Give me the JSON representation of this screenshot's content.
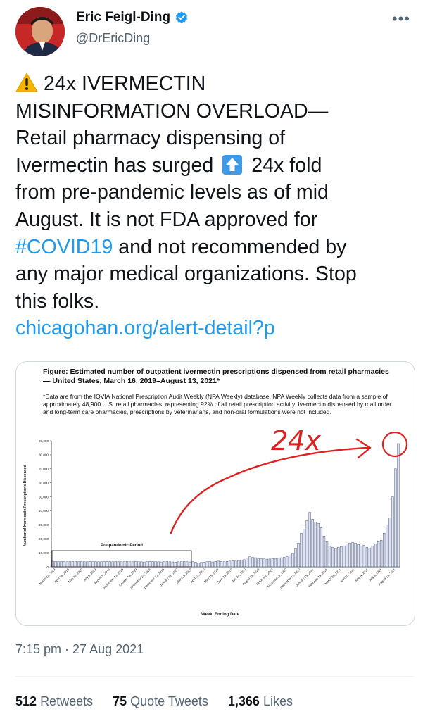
{
  "author": {
    "display_name": "Eric Feigl-Ding",
    "handle": "@DrEricDing",
    "verified": true
  },
  "more_icon": "more-options-icon",
  "tweet": {
    "line1": "24x IVERMECTIN",
    "line2": "MISINFORMATION OVERLOAD—",
    "line3": "Retail pharmacy dispensing of",
    "line4a": "Ivermectin has surged",
    "line4b": "24x fold",
    "line5": "from pre-pandemic levels as of mid",
    "line6": "August. It is not FDA approved for",
    "line7_hashtag": "#COVID19",
    "line7b": " and not recommended by",
    "line8": "any major medical organizations. Stop",
    "line9": "this folks.",
    "link": "chicagohan.org/alert-detail?p"
  },
  "figure": {
    "title": "Figure: Estimated number of outpatient ivermectin prescriptions dispensed from retail pharmacies — United States, March 16, 2019–August 13, 2021*",
    "note": "*Data are from the IQVIA National Prescription Audit Weekly (NPA Weekly) database. NPA Weekly collects data from a sample of approximately 48,900 U.S. retail pharmacies, representing 92% of all retail prescription activity. Ivermectin dispensed by mail order and long-term care pharmacies, prescriptions by veterinarians, and non-oral formulations were not included."
  },
  "chart_data": {
    "type": "bar",
    "ylabel": "Number of Ivermectin Prescriptions Dispensed",
    "xlabel": "Week, Ending Date",
    "ylim": [
      0,
      90000
    ],
    "yticks": [
      "0",
      "10,000",
      "20,000",
      "30,000",
      "40,000",
      "50,000",
      "60,000",
      "70,000",
      "80,000",
      "90,000"
    ],
    "xtick_labels": [
      "March 22, 2019",
      "April 26, 2019",
      "May 31, 2019",
      "July 5, 2019",
      "August 9, 2019",
      "September 13, 2019",
      "October 18, 2019",
      "November 22, 2019",
      "December 27, 2019",
      "January 31, 2020",
      "March 6, 2020",
      "April 10, 2020",
      "May 15, 2020",
      "June 19, 2020",
      "July 24, 2020",
      "August 28, 2020",
      "October 2, 2020",
      "November 6, 2020",
      "December 11, 2020",
      "January 15, 2021",
      "February 19, 2021",
      "March 26, 2021",
      "April 30, 2021",
      "June 4, 2021",
      "July 9, 2021",
      "August 13, 2021"
    ],
    "annotation_prepandemic": "Pre-pandemic Period",
    "annotation_handwritten": "24x",
    "grid": false,
    "values": [
      4000,
      3900,
      3700,
      3800,
      3900,
      3600,
      3700,
      3800,
      3700,
      3600,
      3800,
      3700,
      3600,
      3900,
      3700,
      3800,
      3600,
      3700,
      3800,
      3900,
      3700,
      3600,
      3800,
      3700,
      3600,
      3700,
      3800,
      3700,
      3600,
      3800,
      3700,
      3600,
      3500,
      3700,
      3900,
      3800,
      3700,
      3600,
      3500,
      3700,
      3800,
      3600,
      3500,
      3400,
      3600,
      3700,
      3800,
      3600,
      3500,
      3700,
      3300,
      2800,
      3200,
      3400,
      3600,
      3800,
      3500,
      3900,
      4100,
      3800,
      3700,
      3900,
      4100,
      4300,
      4200,
      4500,
      4800,
      5100,
      6400,
      7200,
      6800,
      6500,
      6000,
      5800,
      5600,
      5500,
      5600,
      5800,
      6000,
      6200,
      6500,
      6800,
      7200,
      8000,
      9500,
      13000,
      17000,
      24000,
      27000,
      33000,
      39000,
      34000,
      32000,
      31000,
      28000,
      22000,
      18000,
      15000,
      14000,
      13000,
      14000,
      14500,
      15000,
      16500,
      17000,
      17500,
      17000,
      16000,
      15000,
      15500,
      14000,
      13500,
      15000,
      16500,
      18000,
      19000,
      24000,
      30000,
      35000,
      50000,
      70000,
      88000
    ]
  },
  "timestamp": "7:15 pm · 27 Aug 2021",
  "stats": {
    "retweets_count": "512",
    "retweets_label": "Retweets",
    "quotes_count": "75",
    "quotes_label": "Quote Tweets",
    "likes_count": "1,366",
    "likes_label": "Likes"
  }
}
